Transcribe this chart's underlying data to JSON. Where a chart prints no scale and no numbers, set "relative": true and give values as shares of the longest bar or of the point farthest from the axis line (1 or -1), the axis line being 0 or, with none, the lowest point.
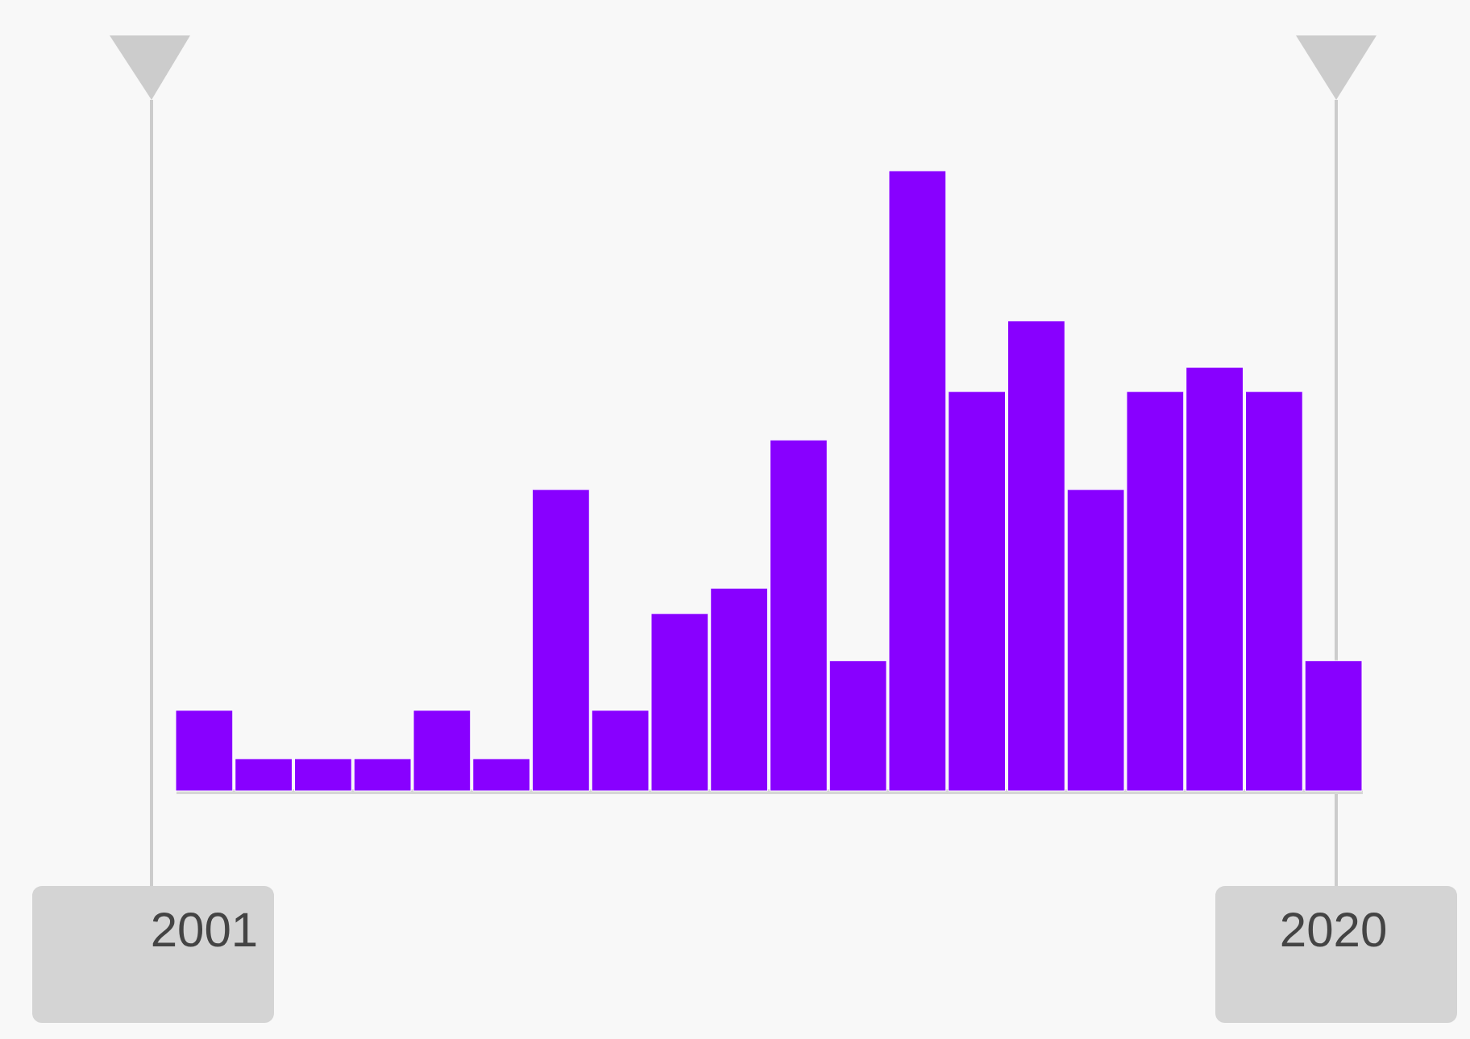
{
  "chart_data": {
    "type": "bar",
    "relative": true,
    "color": "#8800ff",
    "categories": [
      "2001",
      null,
      null,
      null,
      null,
      null,
      null,
      null,
      null,
      null,
      null,
      null,
      null,
      null,
      null,
      null,
      null,
      null,
      null,
      "2020"
    ],
    "values": [
      0.13,
      0.052,
      0.052,
      0.052,
      0.13,
      0.052,
      0.486,
      0.13,
      0.286,
      0.327,
      0.566,
      0.21,
      1,
      0.644,
      0.758,
      0.486,
      0.644,
      0.683,
      0.644,
      0.21
    ]
  }
}
